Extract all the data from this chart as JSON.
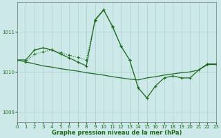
{
  "xlabel": "Graphe pression niveau de la mer (hPa)",
  "bg_color": "#cce8e8",
  "grid_color": "#aacfcf",
  "line_color": "#1e6b1e",
  "ylim": [
    1008.75,
    1011.75
  ],
  "xlim": [
    0,
    23
  ],
  "yticks": [
    1009,
    1010,
    1011
  ],
  "xticks": [
    0,
    1,
    2,
    3,
    4,
    5,
    6,
    7,
    8,
    9,
    10,
    11,
    12,
    13,
    14,
    15,
    16,
    17,
    18,
    19,
    20,
    21,
    22,
    23
  ],
  "series_main": [
    1010.3,
    1010.3,
    1010.55,
    1010.6,
    1010.55,
    1010.45,
    1010.35,
    1010.25,
    1010.15,
    1011.3,
    1011.55,
    1011.15,
    1010.65,
    1010.3,
    1009.6,
    1009.35,
    1009.65,
    1009.85,
    1009.9,
    1009.85,
    1009.85,
    1010.05,
    1010.2,
    1010.2
  ],
  "series_flat": [
    1010.3,
    1010.25,
    1010.2,
    1010.15,
    1010.12,
    1010.08,
    1010.05,
    1010.02,
    1009.98,
    1009.95,
    1009.92,
    1009.88,
    1009.85,
    1009.82,
    1009.8,
    1009.85,
    1009.88,
    1009.92,
    1009.95,
    1009.98,
    1010.0,
    1010.05,
    1010.18,
    1010.2
  ],
  "series_peak": [
    1010.3,
    null,
    null,
    null,
    1010.55,
    null,
    null,
    null,
    null,
    1011.3,
    1011.55,
    null,
    null,
    null,
    1009.6,
    null,
    null,
    null,
    null,
    null,
    null,
    null,
    1010.2,
    1010.2
  ],
  "series_dotted": [
    null,
    1010.25,
    1010.45,
    1010.5,
    1010.55,
    1010.48,
    1010.42,
    1010.36,
    1010.3,
    1011.28,
    1011.55,
    1011.12,
    1010.65,
    1010.3,
    1009.6,
    1009.35,
    null,
    null,
    null,
    null,
    null,
    null,
    null,
    null
  ]
}
